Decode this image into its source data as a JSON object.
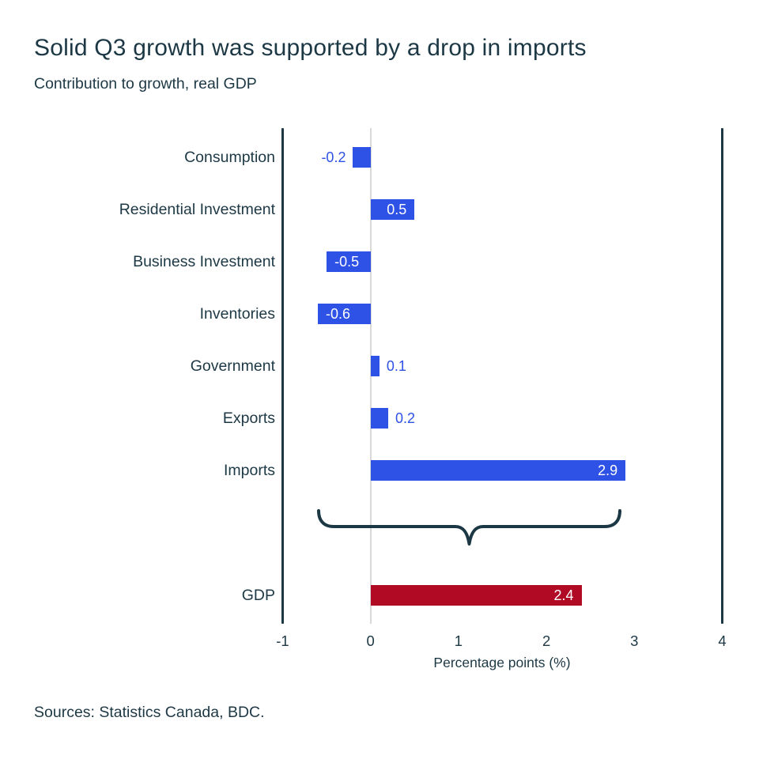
{
  "header": {
    "title": "Solid Q3 growth was supported by a drop in imports",
    "subtitle": "Contribution to growth, real GDP"
  },
  "footer": {
    "sources": "Sources: Statistics Canada, BDC."
  },
  "colors": {
    "ink": "#1d3845",
    "component_bar_blue": "#2e52e6",
    "gdp_bar_red": "#b00a25",
    "zero_line_gray": "#d9d9d9",
    "inside_value_label": "#ffffff"
  },
  "chart_data": {
    "type": "bar",
    "orientation": "horizontal",
    "title": "Solid Q3 growth was supported by a drop in imports",
    "subtitle": "Contribution to growth, real GDP",
    "categories": [
      "Consumption",
      "Residential Investment",
      "Business Investment",
      "Inventories",
      "Government",
      "Exports",
      "Imports"
    ],
    "values": [
      -0.2,
      0.5,
      -0.5,
      -0.6,
      0.1,
      0.2,
      2.9
    ],
    "value_labels": [
      "-0.2",
      "0.5",
      "-0.5",
      "-0.6",
      "0.1",
      "0.2",
      "2.9"
    ],
    "summary": {
      "category": "GDP",
      "value": 2.4,
      "value_label": "2.4"
    },
    "xlabel": "Percentage points (%)",
    "xlim": [
      -1,
      4
    ],
    "xticks": [
      "-1",
      "0",
      "1",
      "2",
      "3",
      "4"
    ],
    "grid": "zero-line-only",
    "legend": "none",
    "annotations": [
      "curly brace spanning the seven component bars, pointing down toward the GDP total bar"
    ]
  }
}
